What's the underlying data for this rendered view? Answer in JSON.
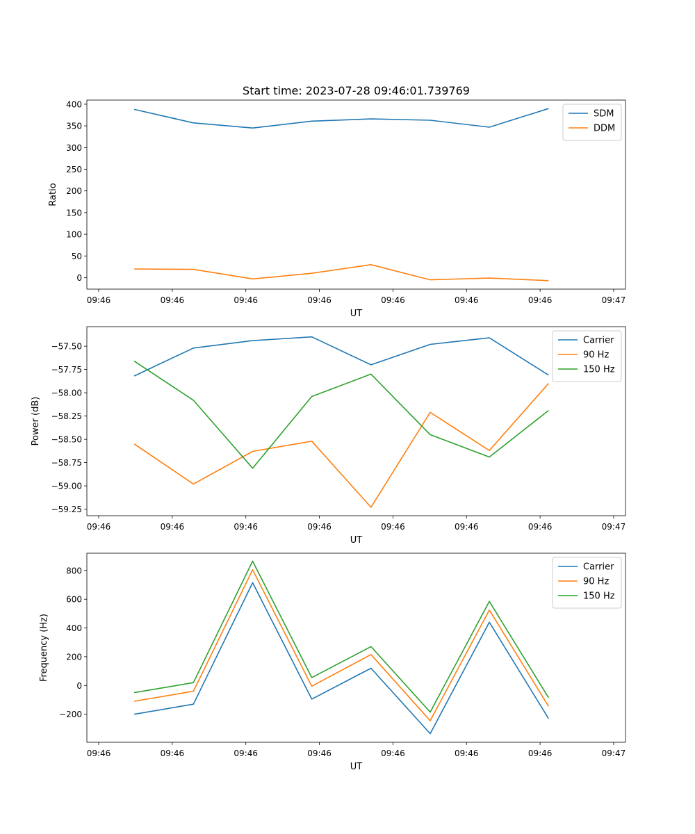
{
  "chart_data": [
    {
      "type": "line",
      "title": "Start time: 2023-07-28 09:46:01.739769",
      "xlabel": "UT",
      "ylabel": "Ratio",
      "x_tick_labels": [
        "09:46",
        "09:46",
        "09:46",
        "09:46",
        "09:46",
        "09:46",
        "09:46",
        "09:47"
      ],
      "x": [
        1,
        2,
        3,
        4,
        5,
        6,
        7,
        8
      ],
      "xlim": [
        0.2,
        9.3
      ],
      "ylim": [
        -26.5,
        409.5
      ],
      "y_ticks": [
        0,
        50,
        100,
        150,
        200,
        250,
        300,
        350,
        400
      ],
      "y_tick_labels": [
        "0",
        "50",
        "100",
        "150",
        "200",
        "250",
        "300",
        "350",
        "400"
      ],
      "legend_position": "top-right",
      "series": [
        {
          "name": "SDM",
          "color": "#1f77b4",
          "values": [
            388,
            357,
            345,
            361,
            366,
            363,
            347,
            390
          ]
        },
        {
          "name": "DDM",
          "color": "#ff7f0e",
          "values": [
            20,
            19,
            -3,
            10,
            30,
            -5,
            -1,
            -7
          ]
        }
      ]
    },
    {
      "type": "line",
      "title": "",
      "xlabel": "UT",
      "ylabel": "Power (dB)",
      "x_tick_labels": [
        "09:46",
        "09:46",
        "09:46",
        "09:46",
        "09:46",
        "09:46",
        "09:46",
        "09:47"
      ],
      "x": [
        1,
        2,
        3,
        4,
        5,
        6,
        7,
        8
      ],
      "xlim": [
        0.2,
        9.3
      ],
      "ylim": [
        -59.32,
        -57.29
      ],
      "y_ticks": [
        -57.5,
        -57.75,
        -58.0,
        -58.25,
        -58.5,
        -58.75,
        -59.0,
        -59.25
      ],
      "y_tick_labels": [
        "−57.50",
        "−57.75",
        "−58.00",
        "−58.25",
        "−58.50",
        "−58.75",
        "−59.00",
        "−59.25"
      ],
      "legend_position": "top-right",
      "series": [
        {
          "name": "Carrier",
          "color": "#1f77b4",
          "values": [
            -57.82,
            -57.52,
            -57.44,
            -57.4,
            -57.7,
            -57.48,
            -57.41,
            -57.81
          ]
        },
        {
          "name": "90 Hz",
          "color": "#ff7f0e",
          "values": [
            -58.55,
            -58.98,
            -58.63,
            -58.52,
            -59.23,
            -58.21,
            -58.62,
            -57.9
          ]
        },
        {
          "name": "150 Hz",
          "color": "#2ca02c",
          "values": [
            -57.66,
            -58.08,
            -58.81,
            -58.04,
            -57.8,
            -58.45,
            -58.69,
            -58.19
          ]
        }
      ]
    },
    {
      "type": "line",
      "title": "",
      "xlabel": "UT",
      "ylabel": "Frequency (Hz)",
      "x_tick_labels": [
        "09:46",
        "09:46",
        "09:46",
        "09:46",
        "09:46",
        "09:46",
        "09:46",
        "09:47"
      ],
      "x": [
        1,
        2,
        3,
        4,
        5,
        6,
        7,
        8
      ],
      "xlim": [
        0.2,
        9.3
      ],
      "ylim": [
        -395,
        920
      ],
      "y_ticks": [
        -200,
        0,
        200,
        400,
        600,
        800
      ],
      "y_tick_labels": [
        "−200",
        "0",
        "200",
        "400",
        "600",
        "800"
      ],
      "legend_position": "top-right",
      "series": [
        {
          "name": "Carrier",
          "color": "#1f77b4",
          "values": [
            -200,
            -130,
            715,
            -95,
            120,
            -335,
            440,
            -230
          ]
        },
        {
          "name": "90 Hz",
          "color": "#ff7f0e",
          "values": [
            -110,
            -40,
            805,
            -5,
            215,
            -245,
            525,
            -145
          ]
        },
        {
          "name": "150 Hz",
          "color": "#2ca02c",
          "values": [
            -50,
            20,
            865,
            55,
            270,
            -185,
            585,
            -85
          ]
        }
      ]
    }
  ]
}
